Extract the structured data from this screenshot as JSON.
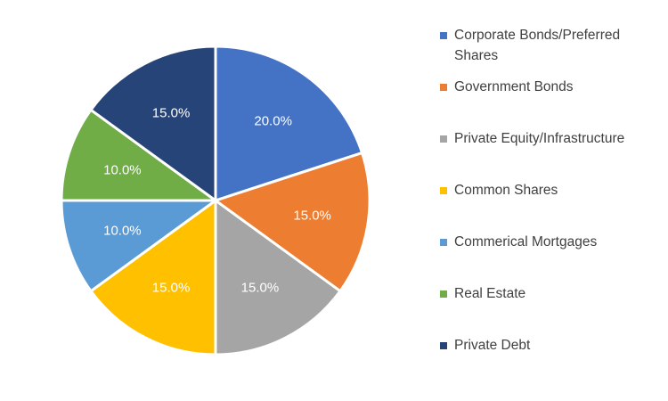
{
  "chart_data": {
    "type": "pie",
    "title": "",
    "slices": [
      {
        "label": "Corporate Bonds/Preferred Shares",
        "value": 20.0,
        "display": "20.0%",
        "color": "#4472C4"
      },
      {
        "label": "Government Bonds",
        "value": 15.0,
        "display": "15.0%",
        "color": "#ED7D31"
      },
      {
        "label": "Private Equity/Infrastructure",
        "value": 15.0,
        "display": "15.0%",
        "color": "#A5A5A5"
      },
      {
        "label": "Common Shares",
        "value": 15.0,
        "display": "15.0%",
        "color": "#FFC000"
      },
      {
        "label": "Commerical Mortgages",
        "value": 10.0,
        "display": "10.0%",
        "color": "#5B9BD5"
      },
      {
        "label": "Real Estate",
        "value": 10.0,
        "display": "10.0%",
        "color": "#70AD47"
      },
      {
        "label": "Private Debt",
        "value": 15.0,
        "display": "15.0%",
        "color": "#264478"
      }
    ],
    "legend_position": "right",
    "start_angle": "12 o'clock",
    "direction": "clockwise"
  }
}
